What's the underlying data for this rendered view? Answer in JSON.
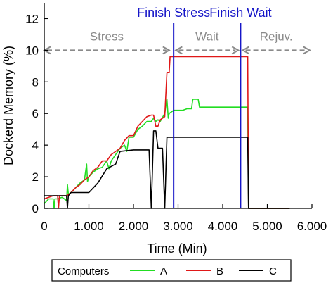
{
  "chart_data": {
    "type": "line",
    "xlabel": "Time (Min)",
    "ylabel": "Dockerd Memory (%)",
    "xlim": [
      0,
      6000
    ],
    "ylim": [
      0,
      13
    ],
    "x_ticks": [
      0,
      1000,
      2000,
      3000,
      4000,
      5000,
      6000
    ],
    "x_tick_labels": [
      "0",
      "1.000",
      "2.000",
      "3.000",
      "4.000",
      "5.000",
      "6.000"
    ],
    "y_ticks": [
      0,
      2,
      4,
      6,
      8,
      10,
      12
    ],
    "y_tick_labels": [
      "0",
      "2",
      "4",
      "6",
      "8",
      "10",
      "12"
    ],
    "legend": {
      "title": "Computers",
      "placement": "bottom"
    },
    "series": [
      {
        "name": "A",
        "color": "#22dd22",
        "points": [
          [
            0,
            0.3
          ],
          [
            100,
            0.6
          ],
          [
            200,
            0.6
          ],
          [
            220,
            0.0
          ],
          [
            240,
            0.6
          ],
          [
            300,
            0.6
          ],
          [
            400,
            0.7
          ],
          [
            500,
            0.5
          ],
          [
            520,
            1.5
          ],
          [
            540,
            0.9
          ],
          [
            600,
            1.0
          ],
          [
            700,
            1.3
          ],
          [
            800,
            1.6
          ],
          [
            900,
            1.8
          ],
          [
            950,
            2.8
          ],
          [
            970,
            1.7
          ],
          [
            1000,
            2.0
          ],
          [
            1100,
            2.3
          ],
          [
            1200,
            2.5
          ],
          [
            1300,
            2.6
          ],
          [
            1400,
            3.0
          ],
          [
            1450,
            2.5
          ],
          [
            1500,
            3.0
          ],
          [
            1600,
            3.4
          ],
          [
            1700,
            3.8
          ],
          [
            1800,
            4.0
          ],
          [
            1850,
            3.6
          ],
          [
            1900,
            4.5
          ],
          [
            2000,
            4.5
          ],
          [
            2100,
            5.0
          ],
          [
            2200,
            5.2
          ],
          [
            2300,
            5.5
          ],
          [
            2400,
            5.5
          ],
          [
            2450,
            5.7
          ],
          [
            2500,
            5.5
          ],
          [
            2550,
            5.6
          ],
          [
            2600,
            5.5
          ],
          [
            2700,
            6.0
          ],
          [
            2750,
            6.9
          ],
          [
            2780,
            5.7
          ],
          [
            2800,
            6.0
          ],
          [
            2900,
            6.2
          ],
          [
            3000,
            6.2
          ],
          [
            3100,
            6.2
          ],
          [
            3200,
            6.3
          ],
          [
            3300,
            6.3
          ],
          [
            3330,
            6.9
          ],
          [
            3450,
            6.9
          ],
          [
            3480,
            6.4
          ],
          [
            3700,
            6.4
          ],
          [
            4000,
            6.4
          ],
          [
            4300,
            6.4
          ],
          [
            4560,
            6.4
          ],
          [
            4580,
            0.0
          ],
          [
            5000,
            0.0
          ],
          [
            5500,
            0.0
          ]
        ]
      },
      {
        "name": "B",
        "color": "#e01818",
        "points": [
          [
            0,
            0.6
          ],
          [
            200,
            0.8
          ],
          [
            300,
            0.8
          ],
          [
            320,
            0.0
          ],
          [
            340,
            0.8
          ],
          [
            500,
            0.8
          ],
          [
            600,
            1.0
          ],
          [
            700,
            1.3
          ],
          [
            800,
            1.5
          ],
          [
            900,
            1.8
          ],
          [
            1000,
            2.0
          ],
          [
            1100,
            2.4
          ],
          [
            1200,
            2.6
          ],
          [
            1300,
            3.0
          ],
          [
            1400,
            3.0
          ],
          [
            1500,
            3.4
          ],
          [
            1600,
            3.6
          ],
          [
            1700,
            3.8
          ],
          [
            1800,
            4.3
          ],
          [
            1900,
            4.6
          ],
          [
            2000,
            4.6
          ],
          [
            2100,
            5.2
          ],
          [
            2200,
            5.5
          ],
          [
            2300,
            5.8
          ],
          [
            2400,
            5.9
          ],
          [
            2450,
            5.9
          ],
          [
            2500,
            5.2
          ],
          [
            2550,
            5.2
          ],
          [
            2600,
            5.6
          ],
          [
            2700,
            5.8
          ],
          [
            2750,
            8.6
          ],
          [
            2800,
            8.6
          ],
          [
            2820,
            9.6
          ],
          [
            3000,
            9.6
          ],
          [
            3500,
            9.6
          ],
          [
            4000,
            9.6
          ],
          [
            4560,
            9.6
          ],
          [
            4580,
            0.0
          ],
          [
            5000,
            0.0
          ],
          [
            5500,
            0.0
          ]
        ]
      },
      {
        "name": "C",
        "color": "#000000",
        "points": [
          [
            0,
            0.8
          ],
          [
            100,
            0.8
          ],
          [
            200,
            0.8
          ],
          [
            300,
            0.8
          ],
          [
            400,
            0.8
          ],
          [
            500,
            0.8
          ],
          [
            520,
            0.0
          ],
          [
            540,
            0.8
          ],
          [
            600,
            1.0
          ],
          [
            800,
            1.0
          ],
          [
            1000,
            1.0
          ],
          [
            1200,
            1.6
          ],
          [
            1400,
            2.5
          ],
          [
            1600,
            2.8
          ],
          [
            1700,
            3.6
          ],
          [
            2000,
            3.7
          ],
          [
            2350,
            3.7
          ],
          [
            2400,
            0.0
          ],
          [
            2450,
            4.9
          ],
          [
            2500,
            4.9
          ],
          [
            2550,
            3.8
          ],
          [
            2650,
            3.8
          ],
          [
            2700,
            0.0
          ],
          [
            2750,
            4.5
          ],
          [
            3000,
            4.5
          ],
          [
            3500,
            4.5
          ],
          [
            4000,
            4.5
          ],
          [
            4560,
            4.5
          ],
          [
            4580,
            0.0
          ],
          [
            5000,
            0.0
          ],
          [
            5500,
            0.0
          ]
        ]
      }
    ],
    "vertical_lines": [
      {
        "x": 2900,
        "label": "Finish Stress",
        "color": "#1515c8"
      },
      {
        "x": 4400,
        "label": "Finish Wait",
        "color": "#1515c8"
      }
    ],
    "phase_spans": [
      {
        "label": "Stress",
        "x_start": 0,
        "x_end": 2800,
        "y": 10
      },
      {
        "label": "Wait",
        "x_start": 2950,
        "x_end": 4350,
        "y": 10
      },
      {
        "label": "Rejuv.",
        "x_start": 4450,
        "x_end": 5950,
        "y": 10
      }
    ]
  }
}
